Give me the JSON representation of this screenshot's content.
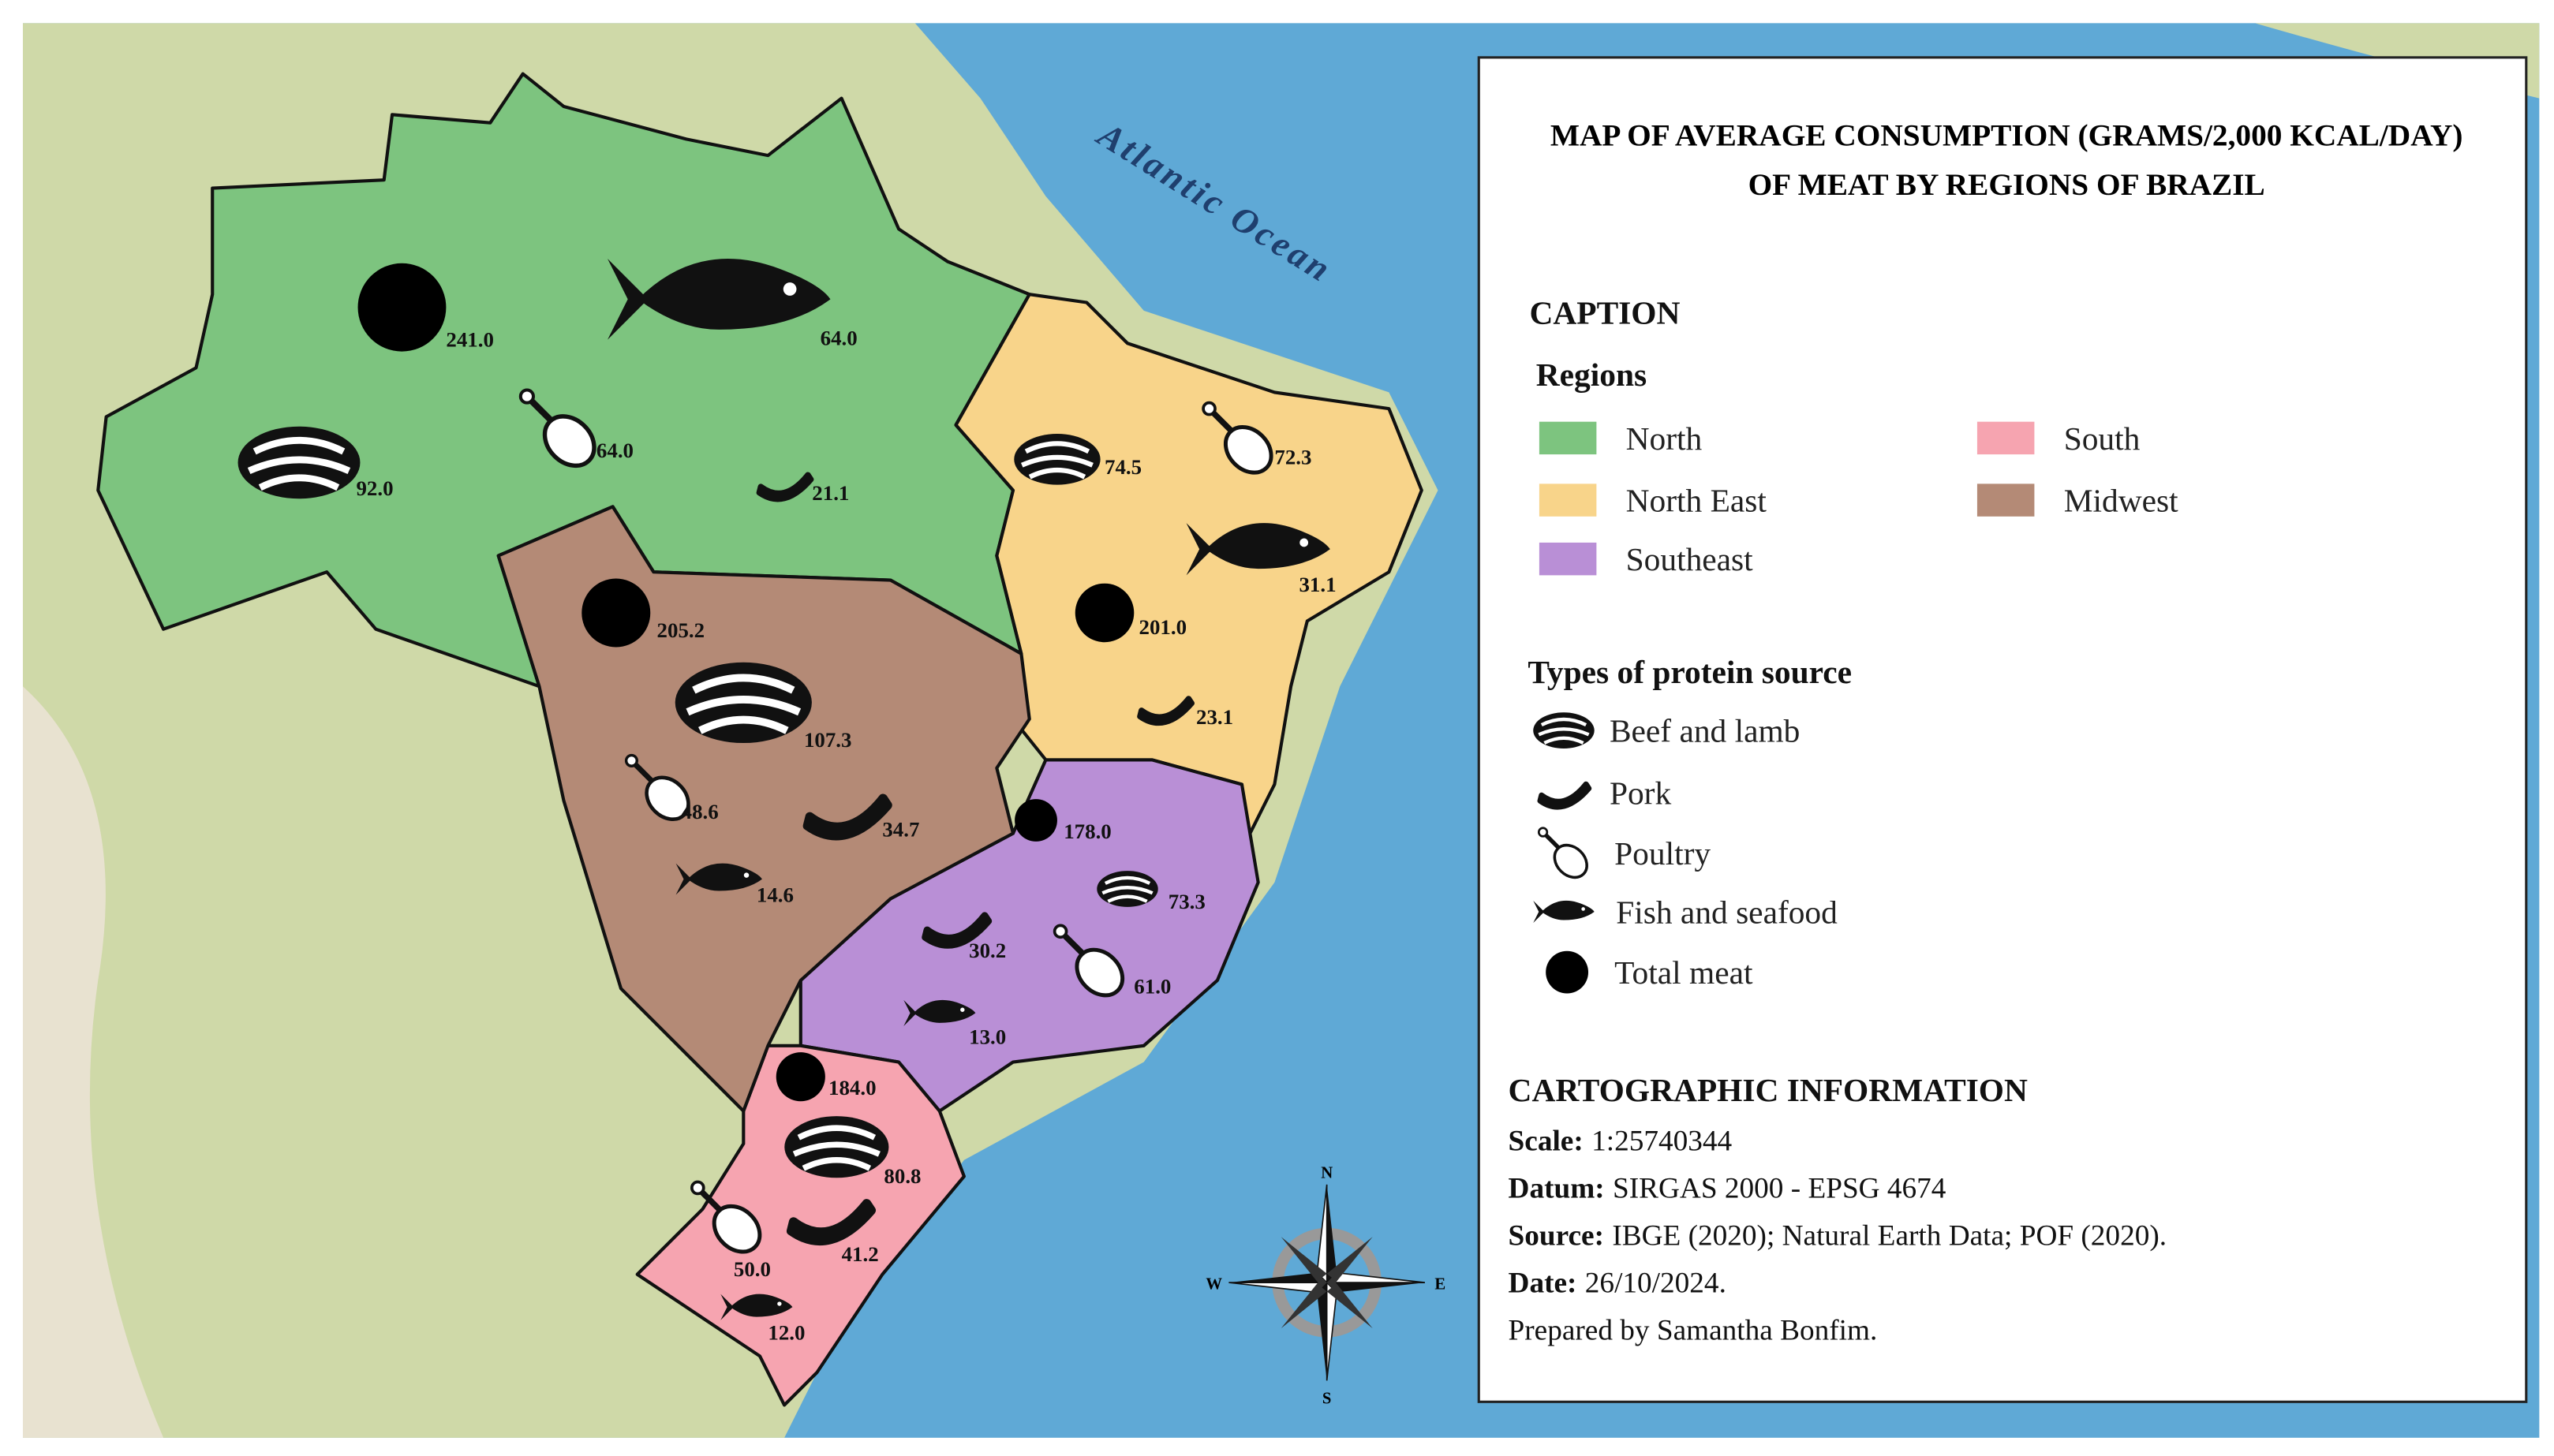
{
  "title_lines": [
    "MAP OF AVERAGE CONSUMPTION (GRAMS/2,000 KCAL/DAY)",
    "OF MEAT BY REGIONS OF BRAZIL"
  ],
  "ocean_label": "Atlantic Ocean",
  "caption": {
    "heading": "CAPTION",
    "regions_heading": "Regions",
    "types_heading": "Types of protein source",
    "types": [
      "Beef and lamb",
      "Pork",
      "Poultry",
      "Fish and seafood",
      "Total meat"
    ]
  },
  "regions": [
    {
      "name": "North",
      "color": "#7dc47f",
      "total": "241.0",
      "beef": "92.0",
      "pork": "21.1",
      "poultry": "64.0",
      "fish": "64.0"
    },
    {
      "name": "North East",
      "color": "#f8d48a",
      "total": "201.0",
      "beef": "74.5",
      "pork": "23.1",
      "poultry": "72.3",
      "fish": "31.1"
    },
    {
      "name": "Southeast",
      "color": "#b98fd6",
      "total": "178.0",
      "beef": "73.3",
      "pork": "30.2",
      "poultry": "61.0",
      "fish": "13.0"
    },
    {
      "name": "South",
      "color": "#f6a4b0",
      "total": "184.0",
      "beef": "80.8",
      "pork": "41.2",
      "poultry": "50.0",
      "fish": "12.0"
    },
    {
      "name": "Midwest",
      "color": "#b48a76",
      "total": "205.2",
      "beef": "107.3",
      "pork": "34.7",
      "poultry": "48.6",
      "fish": "14.6"
    }
  ],
  "cartographic": {
    "heading": "CARTOGRAPHIC INFORMATION",
    "rows": [
      {
        "label": "Scale:",
        "value": "1:25740344"
      },
      {
        "label": "Datum:",
        "value": "SIRGAS 2000 - EPSG 4674"
      },
      {
        "label": "Source:",
        "value": "IBGE (2020); Natural Earth Data; POF (2020)."
      },
      {
        "label": "Date:",
        "value": "26/10/2024."
      }
    ],
    "credit": "Prepared by Samantha Bonfim."
  },
  "compass": {
    "n": "N",
    "e": "E",
    "s": "S",
    "w": "W"
  }
}
